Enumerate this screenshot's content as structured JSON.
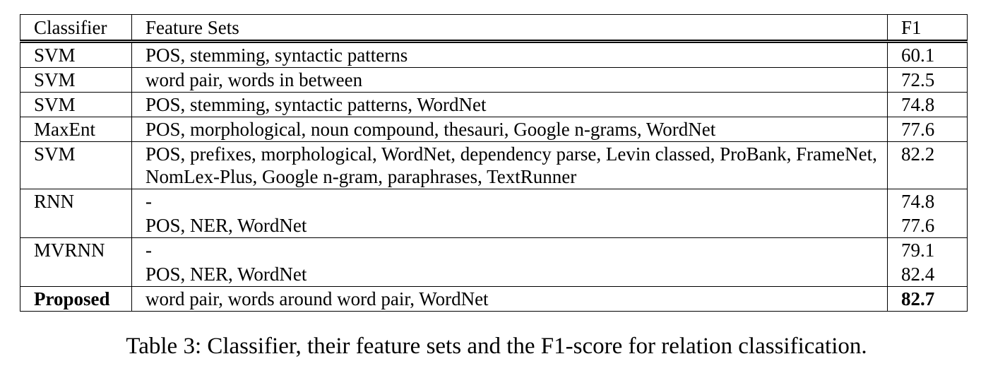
{
  "table": {
    "headers": {
      "classifier": "Classifier",
      "feature_sets": "Feature Sets",
      "f1": "F1"
    },
    "groups": [
      {
        "classifier": "SVM",
        "rows": [
          {
            "features": "POS, stemming, syntactic patterns",
            "f1": "60.1"
          }
        ]
      },
      {
        "classifier": "SVM",
        "rows": [
          {
            "features": "word pair, words in between",
            "f1": "72.5"
          }
        ]
      },
      {
        "classifier": "SVM",
        "rows": [
          {
            "features": "POS, stemming, syntactic patterns, WordNet",
            "f1": "74.8"
          }
        ]
      },
      {
        "classifier": "MaxEnt",
        "rows": [
          {
            "features": "POS, morphological, noun compound, thesauri, Google n-grams, WordNet",
            "f1": "77.6"
          }
        ]
      },
      {
        "classifier": "SVM",
        "rows": [
          {
            "features": "POS, prefixes, morphological, WordNet, dependency parse, Levin classed, ProBank, FrameNet, NomLex-Plus, Google n-gram, paraphrases, TextRunner",
            "f1": "82.2"
          }
        ]
      },
      {
        "classifier": "RNN",
        "rows": [
          {
            "features": "-",
            "f1": "74.8"
          },
          {
            "features": "POS, NER, WordNet",
            "f1": "77.6"
          }
        ]
      },
      {
        "classifier": "MVRNN",
        "rows": [
          {
            "features": "-",
            "f1": "79.1"
          },
          {
            "features": "POS, NER, WordNet",
            "f1": "82.4"
          }
        ]
      },
      {
        "classifier": "Proposed",
        "bold": true,
        "rows": [
          {
            "features": "word pair, words around word pair, WordNet",
            "f1": "82.7"
          }
        ]
      }
    ]
  },
  "caption": "Table 3: Classifier, their feature sets and the F1-score for relation classification."
}
